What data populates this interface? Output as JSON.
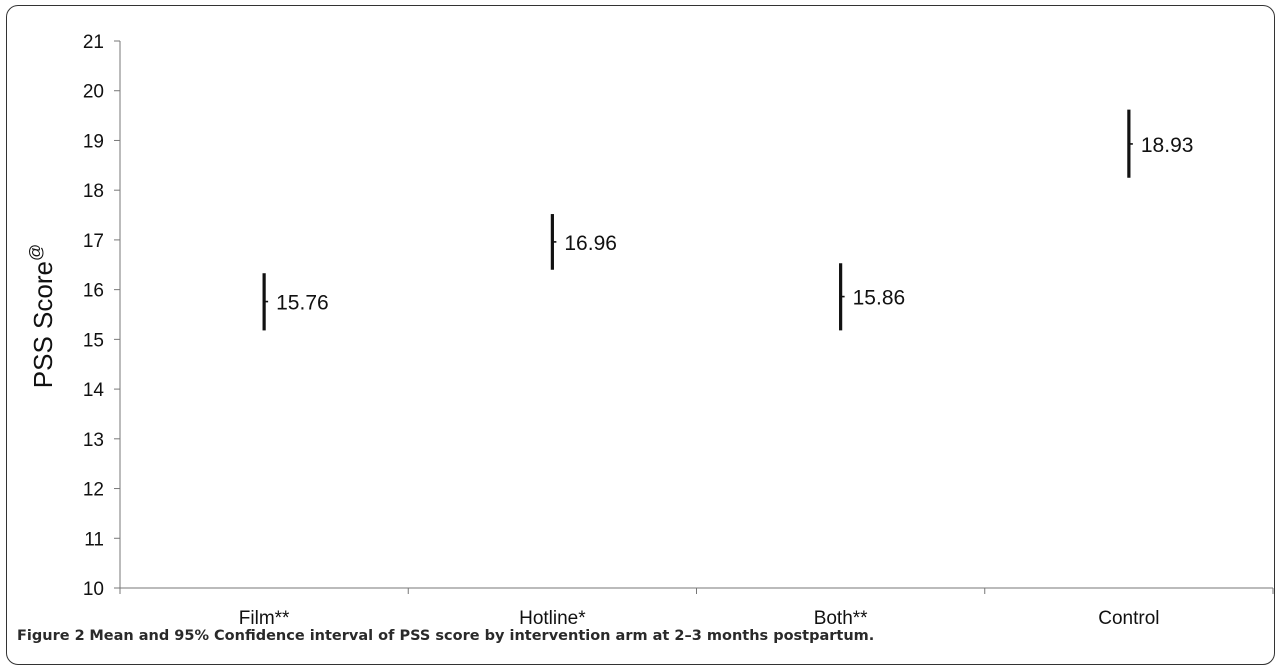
{
  "caption": {
    "label": "Figure 2",
    "text": "Mean and 95% Confidence interval of PSS score by intervention arm at 2–3 months postpartum."
  },
  "chart_data": {
    "type": "errorbar",
    "title": "",
    "xlabel": "",
    "ylabel": "PSS Score",
    "ylabel_superscript": "@",
    "ylim": [
      10,
      21
    ],
    "yticks": [
      10,
      11,
      12,
      13,
      14,
      15,
      16,
      17,
      18,
      19,
      20,
      21
    ],
    "grid": false,
    "categories": [
      "Film**",
      "Hotline*",
      "Both**",
      "Control"
    ],
    "means": [
      15.76,
      16.96,
      15.86,
      18.93
    ],
    "ci_low": [
      15.18,
      16.4,
      15.18,
      18.25
    ],
    "ci_high": [
      16.33,
      17.52,
      16.53,
      19.62
    ],
    "data_labels": [
      "15.76",
      "16.96",
      "15.86",
      "18.93"
    ]
  }
}
